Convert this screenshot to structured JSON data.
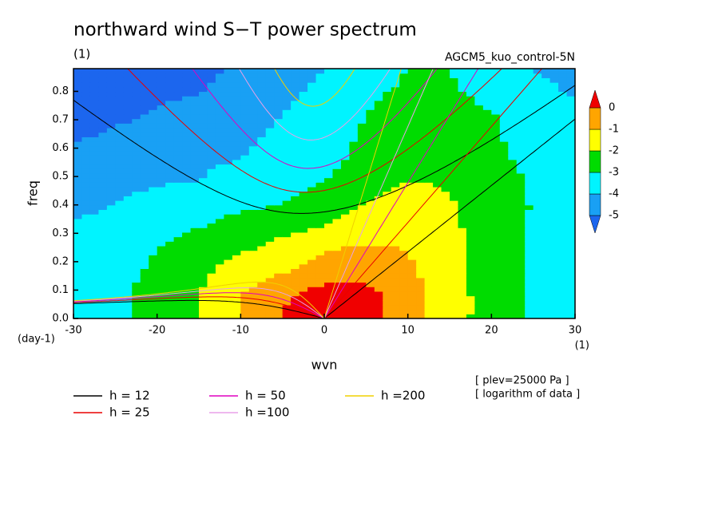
{
  "chart_data": {
    "type": "contour",
    "title": "northward wind S−T power spectrum",
    "subtitle": "(1)",
    "annotation": "AGCM5_kuo_control-5N",
    "x_label": "wvn",
    "y_label": "freq",
    "x_unit": "(1)",
    "y_unit": "(day-1)",
    "notes": [
      "[ plev=25000 Pa ]",
      "[ logarithm of data ]"
    ],
    "xlim": [
      -30,
      30
    ],
    "ylim": [
      0,
      0.88
    ],
    "xticks": [
      -30,
      -20,
      -10,
      0,
      10,
      20,
      30
    ],
    "yticks": [
      {
        "value": 0,
        "label": "0.0"
      },
      0.1,
      0.2,
      0.3,
      0.4,
      0.5,
      0.6,
      0.7,
      0.8
    ],
    "x": [
      -30,
      -25,
      -20,
      -15,
      -10,
      -5,
      0,
      5,
      10,
      15,
      20,
      25,
      30
    ],
    "y": [
      0,
      0.08,
      0.16,
      0.24,
      0.32,
      0.4,
      0.48,
      0.56,
      0.64,
      0.72,
      0.8,
      0.88
    ],
    "z": [
      [
        -3.8,
        -3.3,
        -2.7,
        -2.0,
        -1.0,
        0,
        0.6,
        0.5,
        -0.5,
        -1.6,
        -2.4,
        -3.1,
        -3.6
      ],
      [
        -3.7,
        -3.2,
        -2.7,
        -2.0,
        -1.0,
        -0.1,
        0.5,
        0.4,
        -0.5,
        -1.6,
        -2.4,
        -3.1,
        -3.5
      ],
      [
        -3.8,
        -3.3,
        -2.8,
        -2.2,
        -1.5,
        -1.0,
        -0.5,
        -0.3,
        -0.8,
        -1.7,
        -2.4,
        -3.1,
        -3.5
      ],
      [
        -4.0,
        -3.5,
        -3.0,
        -2.6,
        -2.1,
        -1.6,
        -1.0,
        -0.8,
        -1.0,
        -1.7,
        -2.4,
        -3.1,
        -3.6
      ],
      [
        -3.95,
        -3.6,
        -3.3,
        -3.0,
        -2.6,
        -2.3,
        -2.0,
        -1.5,
        -1.4,
        -1.8,
        -2.5,
        -3.1,
        -3.6
      ],
      [
        -4.2,
        -4.0,
        -3.7,
        -3.4,
        -3.2,
        -3.0,
        -2.5,
        -2.0,
        -1.6,
        -1.9,
        -2.5,
        -3.05,
        -3.6
      ],
      [
        -4.4,
        -4.2,
        -4.05,
        -4.0,
        -3.6,
        -3.3,
        -3.0,
        -2.4,
        -1.95,
        -2.1,
        -2.6,
        -3.1,
        -3.6
      ],
      [
        -4.8,
        -4.5,
        -4.3,
        -4.15,
        -4.0,
        -3.6,
        -3.2,
        -2.8,
        -2.5,
        -2.6,
        -2.8,
        -3.2,
        -3.7
      ],
      [
        -5.1,
        -4.85,
        -4.6,
        -4.4,
        -4.2,
        -3.8,
        -3.3,
        -2.9,
        -2.7,
        -2.7,
        -2.9,
        -3.3,
        -3.8
      ],
      [
        -5.4,
        -5.2,
        -4.9,
        -4.6,
        -4.3,
        -4.0,
        -3.4,
        -3.0,
        -2.8,
        -2.8,
        -2.95,
        -3.4,
        -3.9
      ],
      [
        -5.6,
        -5.4,
        -5.2,
        -5.05,
        -4.6,
        -4.2,
        -3.8,
        -3.15,
        -2.85,
        -2.9,
        -3.2,
        -3.7,
        -4.1
      ],
      [
        -5.8,
        -5.6,
        -5.4,
        -5.2,
        -4.9,
        -4.4,
        -4.0,
        -3.5,
        -3.0,
        -3.0,
        -3.5,
        -4.0,
        -4.3
      ]
    ],
    "levels": [
      -5,
      -4,
      -3,
      -2,
      -1,
      0
    ],
    "colors": [
      "#1c66ee",
      "#19a0f4",
      "#00f4ff",
      "#00dc00",
      "#ffff00",
      "#ffa500",
      "#f00000"
    ],
    "series": [
      {
        "name": "h = 12",
        "h": 12,
        "color": "#000000"
      },
      {
        "name": "h = 25",
        "h": 25,
        "color": "#e80000"
      },
      {
        "name": "h = 50",
        "h": 50,
        "color": "#e000c0"
      },
      {
        "name": "h =100",
        "h": 100,
        "color": "#e8a0e8"
      },
      {
        "name": "h =200",
        "h": 200,
        "color": "#f0d000"
      }
    ]
  }
}
